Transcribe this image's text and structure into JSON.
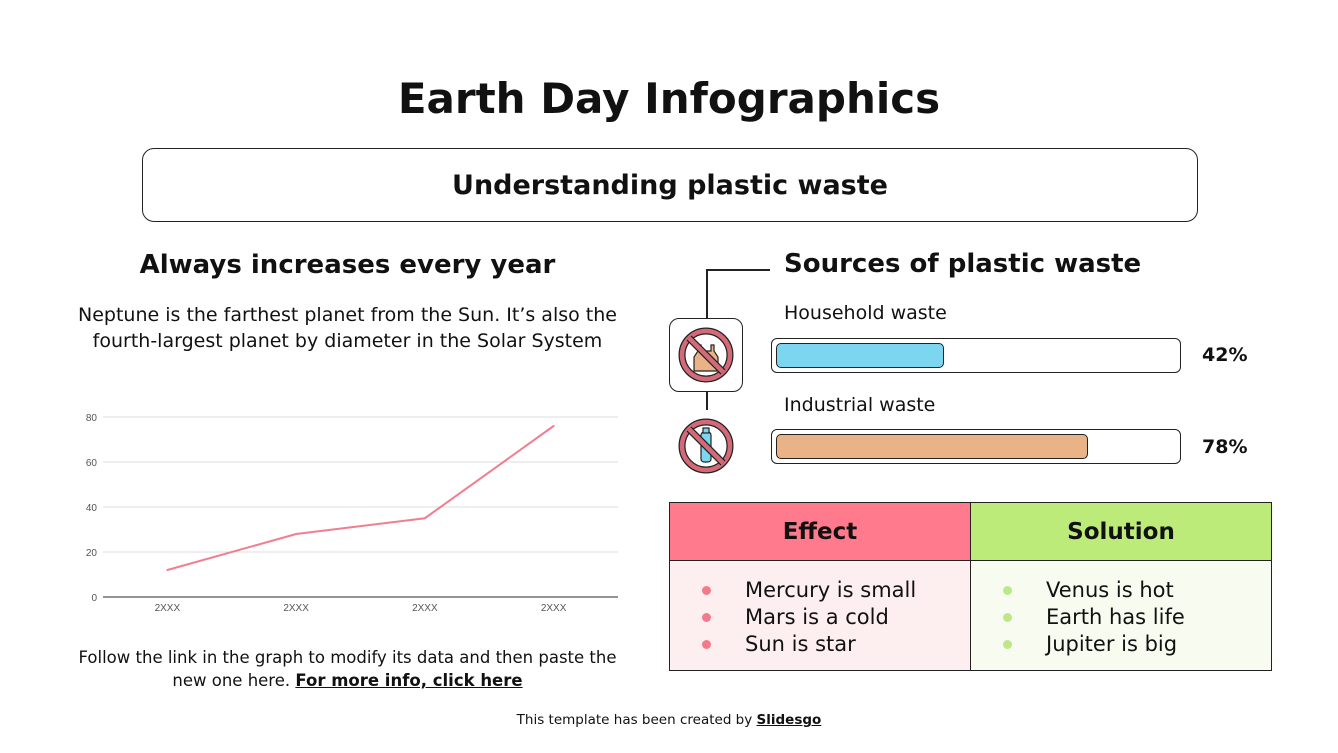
{
  "title": "Earth Day Infographics",
  "subtitle": "Understanding plastic waste",
  "left": {
    "heading": "Always increases every year",
    "description": "Neptune is the farthest planet from the Sun. It’s also the fourth-largest planet by diameter in the Solar System",
    "footnote": "Follow the link in the graph to modify its data and then paste the new one here.",
    "link": "For more info, click here"
  },
  "chart_data": {
    "type": "line",
    "categories": [
      "2XXX",
      "2XXX",
      "2XXX",
      "2XXX"
    ],
    "values": [
      12,
      28,
      35,
      76
    ],
    "yticks": [
      "0",
      "20",
      "40",
      "60",
      "80"
    ],
    "ylim": [
      0,
      80
    ],
    "color": "#f07e90",
    "grid": true
  },
  "sources": {
    "heading": "Sources of plastic waste",
    "items": [
      {
        "label": "Household waste",
        "percent_text": "42%",
        "value": 42,
        "color": "#7dd6ef",
        "icon": "no-plastic-bag-icon"
      },
      {
        "label": "Industrial waste",
        "percent_text": "78%",
        "value": 78,
        "color": "#e9b287",
        "icon": "no-plastic-bottle-icon"
      }
    ]
  },
  "table": {
    "effect": {
      "header": "Effect",
      "items": [
        "Mercury is small",
        "Mars is a cold",
        "Sun is star"
      ],
      "header_color": "#ff7a8c",
      "body_color": "#fdeef0",
      "dot_color": "#f47a8b"
    },
    "solution": {
      "header": "Solution",
      "items": [
        "Venus is hot",
        "Earth has life",
        "Jupiter is big"
      ],
      "header_color": "#bdeb7a",
      "body_color": "#f7fbf0",
      "dot_color": "#bde887"
    }
  },
  "credit": {
    "text": "This template has been created by ",
    "brand": "Slidesgo"
  }
}
